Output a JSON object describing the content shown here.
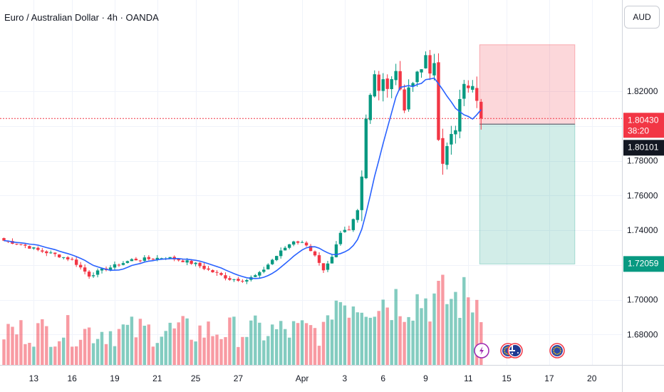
{
  "header": {
    "title": "Euro / Australian Dollar · 4h · OANDA"
  },
  "price_scale": {
    "currency_button": "AUD"
  },
  "price_labels": {
    "current": {
      "value": "1.80430",
      "countdown": "38:20",
      "color": "#f23645"
    },
    "entry": {
      "value": "1.80101",
      "color": "#131722"
    },
    "target": {
      "value": "1.72059",
      "color": "#089981"
    }
  },
  "chart_data": {
    "type": "candlestick",
    "title": "Euro / Australian Dollar · 4h · OANDA",
    "y_ticks": [
      1.82,
      1.8,
      1.78,
      1.76,
      1.74,
      1.72,
      1.7,
      1.68
    ],
    "y_tick_labels": [
      "1.82000",
      "1.80000",
      "1.78000",
      "1.76000",
      "1.74000",
      "1.72000",
      "1.70000",
      "1.68000"
    ],
    "ylim": [
      1.6625,
      1.8725
    ],
    "x_ticks": [
      {
        "label": "13",
        "bar": 7
      },
      {
        "label": "16",
        "bar": 16
      },
      {
        "label": "19",
        "bar": 26
      },
      {
        "label": "21",
        "bar": 36
      },
      {
        "label": "25",
        "bar": 45
      },
      {
        "label": "27",
        "bar": 55
      },
      {
        "label": "Apr",
        "bar": 70
      },
      {
        "label": "3",
        "bar": 80
      },
      {
        "label": "6",
        "bar": 89
      },
      {
        "label": "9",
        "bar": 99
      },
      {
        "label": "11",
        "bar": 109
      },
      {
        "label": "15",
        "bar": 118
      },
      {
        "label": "17",
        "bar": 128
      },
      {
        "label": "20",
        "bar": 138
      }
    ],
    "moving_average_color": "#2962ff",
    "grid": true,
    "up_color": "#089981",
    "down_color": "#f23645",
    "ohlc_anchor_closes": [
      [
        0,
        1.734
      ],
      [
        4,
        1.732
      ],
      [
        8,
        1.7285
      ],
      [
        12,
        1.726
      ],
      [
        16,
        1.723
      ],
      [
        20,
        1.714
      ],
      [
        23,
        1.717
      ],
      [
        26,
        1.7195
      ],
      [
        30,
        1.723
      ],
      [
        34,
        1.7235
      ],
      [
        38,
        1.7245
      ],
      [
        42,
        1.7225
      ],
      [
        45,
        1.7205
      ],
      [
        49,
        1.716
      ],
      [
        53,
        1.712
      ],
      [
        57,
        1.7115
      ],
      [
        60,
        1.715
      ],
      [
        63,
        1.723
      ],
      [
        66,
        1.73
      ],
      [
        68,
        1.734
      ],
      [
        71,
        1.732
      ],
      [
        73,
        1.725
      ],
      [
        75,
        1.716
      ],
      [
        77,
        1.724
      ],
      [
        79,
        1.738
      ],
      [
        81,
        1.742
      ],
      [
        83,
        1.752
      ],
      [
        84,
        1.773
      ],
      [
        85,
        1.805
      ],
      [
        87,
        1.828
      ],
      [
        88,
        1.822
      ],
      [
        90,
        1.825
      ],
      [
        92,
        1.831
      ],
      [
        94,
        1.812
      ],
      [
        96,
        1.825
      ],
      [
        98,
        1.832
      ],
      [
        99,
        1.841
      ],
      [
        100,
        1.833
      ],
      [
        101,
        1.834
      ],
      [
        102,
        1.789
      ],
      [
        103,
        1.78
      ],
      [
        104,
        1.792
      ],
      [
        105,
        1.798
      ],
      [
        106,
        1.796
      ],
      [
        107,
        1.814
      ],
      [
        108,
        1.823
      ],
      [
        109,
        1.819
      ],
      [
        110,
        1.825
      ],
      [
        111,
        1.812
      ],
      [
        112,
        1.8043
      ]
    ],
    "position": {
      "type": "short",
      "entry": 1.80101,
      "stop": 1.84675,
      "target": 1.72059,
      "start_bar": 112,
      "end_bar": 134
    },
    "event_markers": [
      "lightning-icon",
      "eu-flag-icon",
      "au-flag-icon",
      "eu-flag-icon"
    ]
  }
}
